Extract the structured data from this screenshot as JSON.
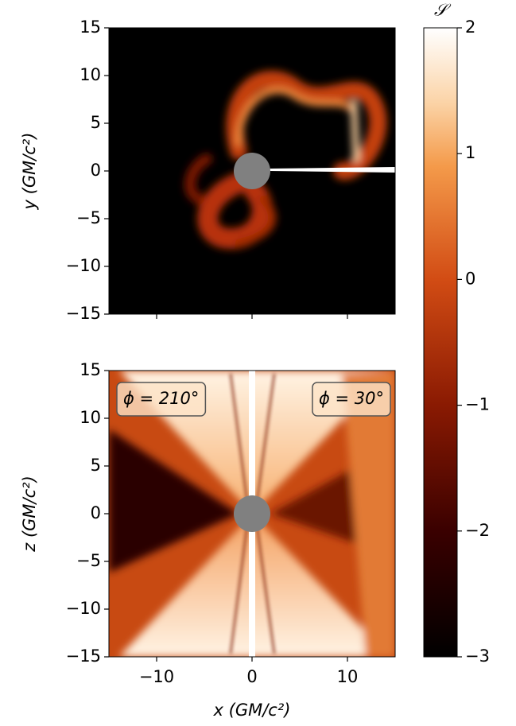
{
  "chart_data": [
    {
      "type": "heatmap",
      "ylabel": "y (GM/c²)",
      "xlim": [
        -15,
        15
      ],
      "ylim": [
        -15,
        15
      ],
      "xticks": [
        -10,
        0,
        10
      ],
      "yticks": [
        {
          "value": -15,
          "label": "−15"
        },
        {
          "value": -10,
          "label": "−10"
        },
        {
          "value": -5,
          "label": "−5"
        },
        0,
        5,
        10,
        15
      ]
    },
    {
      "type": "heatmap",
      "ylabel": "z (GM/c²)",
      "xlabel": "x (GM/c²)",
      "xlim": [
        -15,
        15
      ],
      "ylim": [
        -15,
        15
      ],
      "xticks": [
        {
          "value": -10,
          "label": "−10"
        },
        0,
        10
      ],
      "yticks": [
        {
          "value": -15,
          "label": "−15"
        },
        {
          "value": -10,
          "label": "−10"
        },
        {
          "value": -5,
          "label": "−5"
        },
        0,
        5,
        10,
        15
      ],
      "annotations": [
        "ϕ = 210°",
        "ϕ = 30°"
      ]
    }
  ],
  "colorbar": {
    "label": "𝒮",
    "lim": [
      -3,
      2
    ],
    "ticks": [
      {
        "value": -3,
        "label": "−3"
      },
      {
        "value": -2,
        "label": "−2"
      },
      {
        "value": -1,
        "label": "−1"
      },
      0,
      1,
      2
    ]
  }
}
